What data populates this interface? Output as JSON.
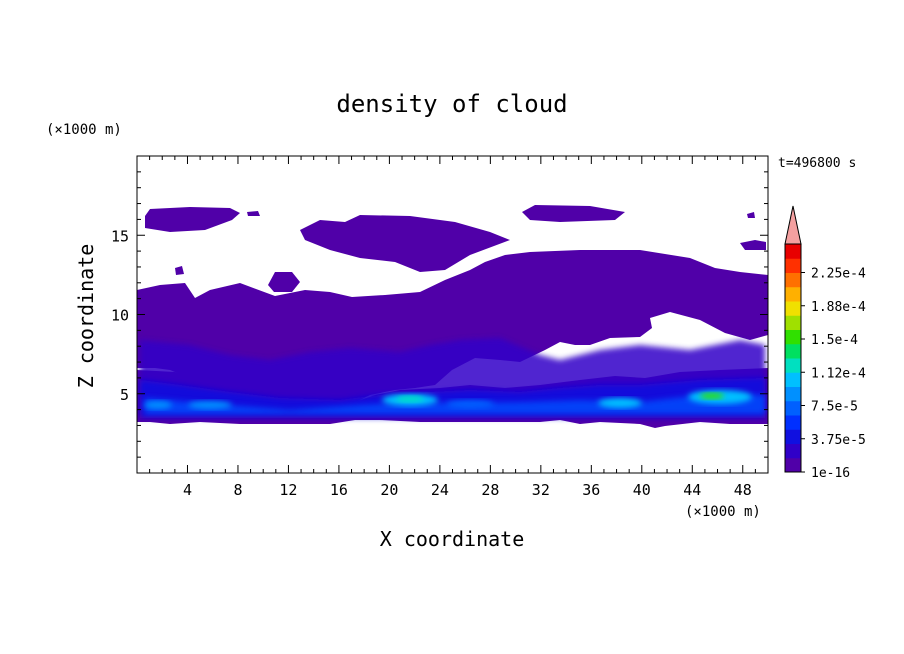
{
  "chart_data": {
    "type": "heatmap",
    "title": "density of cloud",
    "time_label": "t=496800 s",
    "xlabel": "X coordinate",
    "ylabel": "Z coordinate",
    "x_unit": "(×1000 m)",
    "y_unit": "(×1000 m)",
    "xlim": [
      0,
      50
    ],
    "ylim": [
      0,
      20
    ],
    "x_ticks": [
      4,
      8,
      12,
      16,
      20,
      24,
      28,
      32,
      36,
      40,
      44,
      48
    ],
    "y_ticks": [
      5,
      10,
      15
    ],
    "colorbar": {
      "labels": [
        "2.25e-4",
        "1.88e-4",
        "1.5e-4",
        "1.12e-4",
        "7.5e-5",
        "3.75e-5",
        "1e-16"
      ],
      "colors": [
        "#5000a8",
        "#3000c8",
        "#1010e0",
        "#0030ff",
        "#0060ff",
        "#0090ff",
        "#00c0ff",
        "#00e0c0",
        "#00e060",
        "#30e000",
        "#a0e000",
        "#f0e000",
        "#ffb000",
        "#ff7000",
        "#ff3000",
        "#e80000"
      ],
      "over_color": "#f4a0a0"
    },
    "regions": [
      {
        "name": "upper-cloud-deck-west",
        "x": [
          0.8,
          10
        ],
        "z": [
          15.2,
          16.6
        ]
      },
      {
        "name": "upper-cloud-deck-mid",
        "x": [
          14,
          30
        ],
        "z": [
          13.8,
          16.3
        ]
      },
      {
        "name": "upper-cloud-deck-east",
        "x": [
          30.5,
          39
        ],
        "z": [
          15.8,
          16.8
        ]
      },
      {
        "name": "main-cloud-layer",
        "x": [
          0,
          50
        ],
        "z": [
          3.2,
          13.5
        ]
      },
      {
        "name": "dense-core-1",
        "x": [
          18.5,
          23
        ],
        "z": [
          4,
          5
        ]
      },
      {
        "name": "dense-core-2",
        "x": [
          36,
          39.5
        ],
        "z": [
          4,
          5
        ]
      },
      {
        "name": "dense-core-3",
        "x": [
          44,
          48.5
        ],
        "z": [
          4.2,
          5.4
        ]
      }
    ]
  }
}
